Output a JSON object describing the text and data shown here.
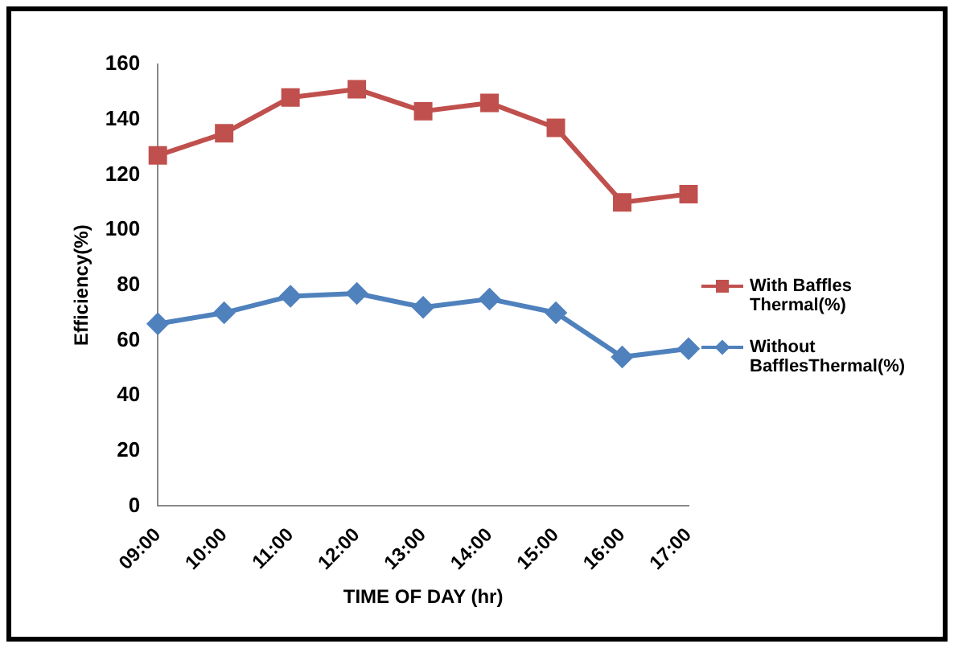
{
  "chart_data": {
    "type": "line",
    "xlabel": "TIME OF DAY (hr)",
    "ylabel": "Efficiency(%)",
    "categories": [
      "09:00",
      "10:00",
      "11:00",
      "12:00",
      "13:00",
      "14:00",
      "15:00",
      "16:00",
      "17:00"
    ],
    "series": [
      {
        "name": "With Baffles Thermal(%)",
        "color": "#c0504d",
        "marker": "square",
        "values": [
          127,
          135,
          148,
          151,
          143,
          146,
          137,
          110,
          113
        ]
      },
      {
        "name": "Without BafflesThermal(%)",
        "color": "#4f81bd",
        "marker": "diamond",
        "values": [
          66,
          70,
          76,
          77,
          72,
          75,
          70,
          54,
          57
        ]
      }
    ],
    "ylim": [
      0,
      160
    ],
    "yticks": [
      0,
      20,
      40,
      60,
      80,
      100,
      120,
      140,
      160
    ],
    "grid": false,
    "legend": "right"
  }
}
